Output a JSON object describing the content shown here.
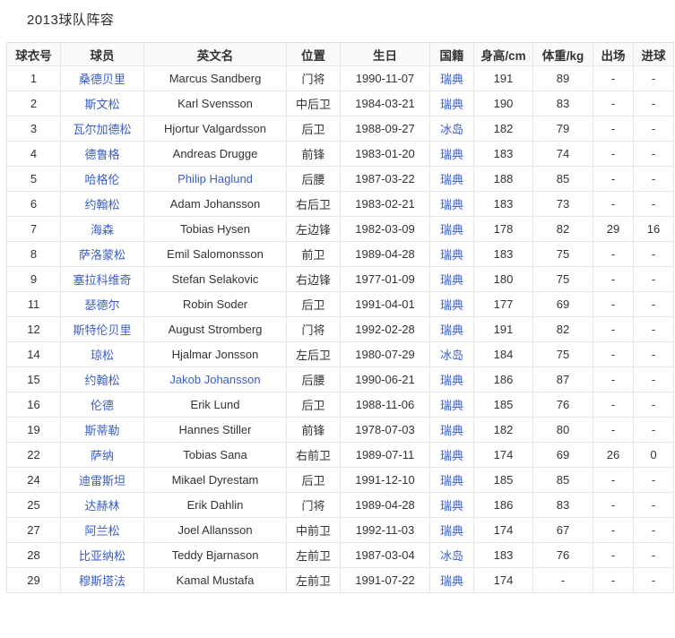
{
  "page": {
    "title": "2013球队阵容"
  },
  "colors": {
    "link": "#3a5dc7",
    "text": "#333333",
    "border": "#e6e6e6",
    "header_bg": "#fafafa"
  },
  "table": {
    "columns": [
      {
        "key": "number",
        "label": "球衣号"
      },
      {
        "key": "player",
        "label": "球员"
      },
      {
        "key": "en_name",
        "label": "英文名"
      },
      {
        "key": "position",
        "label": "位置"
      },
      {
        "key": "birthday",
        "label": "生日"
      },
      {
        "key": "nationality",
        "label": "国籍"
      },
      {
        "key": "height",
        "label": "身高/cm"
      },
      {
        "key": "weight",
        "label": "体重/kg"
      },
      {
        "key": "apps",
        "label": "出场"
      },
      {
        "key": "goals",
        "label": "进球"
      }
    ],
    "rows": [
      {
        "number": "1",
        "player": "桑德贝里",
        "en_name": "Marcus Sandberg",
        "en_link": false,
        "position": "门将",
        "birthday": "1990-11-07",
        "nationality": "瑞典",
        "height": "191",
        "weight": "89",
        "apps": "-",
        "goals": "-"
      },
      {
        "number": "2",
        "player": "斯文松",
        "en_name": "Karl Svensson",
        "en_link": false,
        "position": "中后卫",
        "birthday": "1984-03-21",
        "nationality": "瑞典",
        "height": "190",
        "weight": "83",
        "apps": "-",
        "goals": "-"
      },
      {
        "number": "3",
        "player": "瓦尔加德松",
        "en_name": "Hjortur Valgardsson",
        "en_link": false,
        "position": "后卫",
        "birthday": "1988-09-27",
        "nationality": "冰岛",
        "height": "182",
        "weight": "79",
        "apps": "-",
        "goals": "-"
      },
      {
        "number": "4",
        "player": "德鲁格",
        "en_name": "Andreas Drugge",
        "en_link": false,
        "position": "前锋",
        "birthday": "1983-01-20",
        "nationality": "瑞典",
        "height": "183",
        "weight": "74",
        "apps": "-",
        "goals": "-"
      },
      {
        "number": "5",
        "player": "哈格伦",
        "en_name": "Philip Haglund",
        "en_link": true,
        "position": "后腰",
        "birthday": "1987-03-22",
        "nationality": "瑞典",
        "height": "188",
        "weight": "85",
        "apps": "-",
        "goals": "-"
      },
      {
        "number": "6",
        "player": "约翰松",
        "en_name": "Adam Johansson",
        "en_link": false,
        "position": "右后卫",
        "birthday": "1983-02-21",
        "nationality": "瑞典",
        "height": "183",
        "weight": "73",
        "apps": "-",
        "goals": "-"
      },
      {
        "number": "7",
        "player": "海森",
        "en_name": "Tobias Hysen",
        "en_link": false,
        "position": "左边锋",
        "birthday": "1982-03-09",
        "nationality": "瑞典",
        "height": "178",
        "weight": "82",
        "apps": "29",
        "goals": "16"
      },
      {
        "number": "8",
        "player": "萨洛蒙松",
        "en_name": "Emil Salomonsson",
        "en_link": false,
        "position": "前卫",
        "birthday": "1989-04-28",
        "nationality": "瑞典",
        "height": "183",
        "weight": "75",
        "apps": "-",
        "goals": "-"
      },
      {
        "number": "9",
        "player": "塞拉科维奇",
        "en_name": "Stefan Selakovic",
        "en_link": false,
        "position": "右边锋",
        "birthday": "1977-01-09",
        "nationality": "瑞典",
        "height": "180",
        "weight": "75",
        "apps": "-",
        "goals": "-"
      },
      {
        "number": "11",
        "player": "瑟德尔",
        "en_name": "Robin Soder",
        "en_link": false,
        "position": "后卫",
        "birthday": "1991-04-01",
        "nationality": "瑞典",
        "height": "177",
        "weight": "69",
        "apps": "-",
        "goals": "-"
      },
      {
        "number": "12",
        "player": "斯特伦贝里",
        "en_name": "August Stromberg",
        "en_link": false,
        "position": "门将",
        "birthday": "1992-02-28",
        "nationality": "瑞典",
        "height": "191",
        "weight": "82",
        "apps": "-",
        "goals": "-"
      },
      {
        "number": "14",
        "player": "琼松",
        "en_name": "Hjalmar Jonsson",
        "en_link": false,
        "position": "左后卫",
        "birthday": "1980-07-29",
        "nationality": "冰岛",
        "height": "184",
        "weight": "75",
        "apps": "-",
        "goals": "-"
      },
      {
        "number": "15",
        "player": "约翰松",
        "en_name": "Jakob Johansson",
        "en_link": true,
        "position": "后腰",
        "birthday": "1990-06-21",
        "nationality": "瑞典",
        "height": "186",
        "weight": "87",
        "apps": "-",
        "goals": "-"
      },
      {
        "number": "16",
        "player": "伦德",
        "en_name": "Erik Lund",
        "en_link": false,
        "position": "后卫",
        "birthday": "1988-11-06",
        "nationality": "瑞典",
        "height": "185",
        "weight": "76",
        "apps": "-",
        "goals": "-"
      },
      {
        "number": "19",
        "player": "斯蒂勒",
        "en_name": "Hannes Stiller",
        "en_link": false,
        "position": "前锋",
        "birthday": "1978-07-03",
        "nationality": "瑞典",
        "height": "182",
        "weight": "80",
        "apps": "-",
        "goals": "-"
      },
      {
        "number": "22",
        "player": "萨纳",
        "en_name": "Tobias Sana",
        "en_link": false,
        "position": "右前卫",
        "birthday": "1989-07-11",
        "nationality": "瑞典",
        "height": "174",
        "weight": "69",
        "apps": "26",
        "goals": "0"
      },
      {
        "number": "24",
        "player": "迪雷斯坦",
        "en_name": "Mikael Dyrestam",
        "en_link": false,
        "position": "后卫",
        "birthday": "1991-12-10",
        "nationality": "瑞典",
        "height": "185",
        "weight": "85",
        "apps": "-",
        "goals": "-"
      },
      {
        "number": "25",
        "player": "达赫林",
        "en_name": "Erik Dahlin",
        "en_link": false,
        "position": "门将",
        "birthday": "1989-04-28",
        "nationality": "瑞典",
        "height": "186",
        "weight": "83",
        "apps": "-",
        "goals": "-"
      },
      {
        "number": "27",
        "player": "阿兰松",
        "en_name": "Joel Allansson",
        "en_link": false,
        "position": "中前卫",
        "birthday": "1992-11-03",
        "nationality": "瑞典",
        "height": "174",
        "weight": "67",
        "apps": "-",
        "goals": "-"
      },
      {
        "number": "28",
        "player": "比亚纳松",
        "en_name": "Teddy Bjarnason",
        "en_link": false,
        "position": "左前卫",
        "birthday": "1987-03-04",
        "nationality": "冰岛",
        "height": "183",
        "weight": "76",
        "apps": "-",
        "goals": "-"
      },
      {
        "number": "29",
        "player": "穆斯塔法",
        "en_name": "Kamal Mustafa",
        "en_link": false,
        "position": "左前卫",
        "birthday": "1991-07-22",
        "nationality": "瑞典",
        "height": "174",
        "weight": "-",
        "apps": "-",
        "goals": "-"
      }
    ]
  }
}
